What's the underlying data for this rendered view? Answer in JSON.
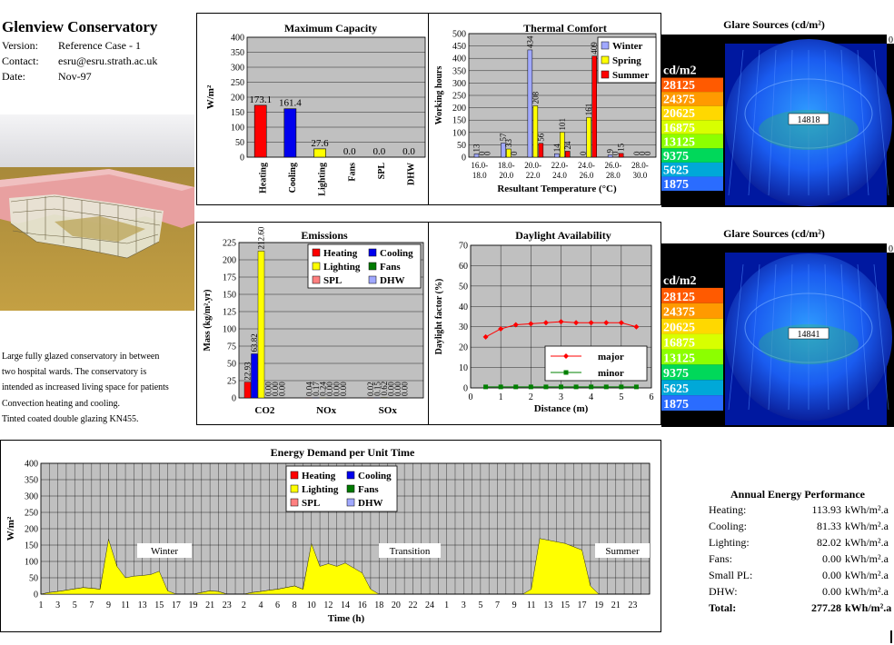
{
  "header": {
    "title": "Glenview Conservatory",
    "fields": [
      {
        "label": "Version:",
        "value": "Reference Case - 1"
      },
      {
        "label": "Contact:",
        "value": "esru@esru.strath.ac.uk"
      },
      {
        "label": "Date:",
        "value": "Nov-97"
      }
    ]
  },
  "description": [
    "Large fully glazed conservatory in between",
    "two hospital wards. The conservatory is",
    "intended as increased living space for patients",
    "Convection heating and cooling.",
    "Tinted coated double glazing KN455."
  ],
  "glare": [
    {
      "title": "Glare Sources (cd/m²)",
      "unit": "cd/m2",
      "zero": "0",
      "peak": "14818",
      "scale": [
        "28125",
        "24375",
        "20625",
        "16875",
        "13125",
        "9375",
        "5625",
        "1875"
      ]
    },
    {
      "title": "Glare Sources (cd/m²)",
      "unit": "cd/m2",
      "zero": "0",
      "peak": "14841",
      "scale": [
        "28125",
        "24375",
        "20625",
        "16875",
        "13125",
        "9375",
        "5625",
        "1875"
      ]
    }
  ],
  "colors": {
    "heating": "#ff0000",
    "cooling": "#0000ee",
    "lighting": "#ffff00",
    "fans": "#007a00",
    "spl": "#ff8080",
    "dhw": "#a0a8ff",
    "winter": "#a0a8ff",
    "spring": "#ffff00",
    "summer": "#ff0000",
    "plot_bg": "#c0c0c0"
  },
  "annual": {
    "title": "Annual Energy Performance",
    "rows": [
      {
        "label": "Heating:",
        "value": "113.93",
        "unit": "kWh/m².a"
      },
      {
        "label": "Cooling:",
        "value": "81.33",
        "unit": "kWh/m².a"
      },
      {
        "label": "Lighting:",
        "value": "82.02",
        "unit": "kWh/m².a"
      },
      {
        "label": "Fans:",
        "value": "0.00",
        "unit": "kWh/m².a"
      },
      {
        "label": "Small PL:",
        "value": "0.00",
        "unit": "kWh/m².a"
      },
      {
        "label": "DHW:",
        "value": "0.00",
        "unit": "kWh/m².a"
      }
    ],
    "total": {
      "label": "Total:",
      "value": "277.28",
      "unit": "kWh/m².a"
    }
  },
  "chart_data": [
    {
      "type": "bar",
      "title": "Maximum Capacity",
      "ylabel": "W/m²",
      "ylim": [
        0,
        400
      ],
      "yticks": [
        0,
        50,
        100,
        150,
        200,
        250,
        300,
        350,
        400
      ],
      "grid": true,
      "categories": [
        "Heating",
        "Cooling",
        "Lighting",
        "Fans",
        "SPL",
        "DHW"
      ],
      "values": [
        173.1,
        161.4,
        27.6,
        0.0,
        0.0,
        0.0
      ],
      "labels": [
        "173.1",
        "161.4",
        "27.6",
        "0.0",
        "0.0",
        "0.0"
      ]
    },
    {
      "type": "bar",
      "title": "Thermal Comfort",
      "xlabel": "Resultant Temperature (°C)",
      "ylabel": "Working hours",
      "ylim": [
        0,
        500
      ],
      "yticks": [
        0,
        50,
        100,
        150,
        200,
        250,
        300,
        350,
        400,
        450,
        500
      ],
      "grid": true,
      "legend": "top-right",
      "categories": [
        "16.0-18.0",
        "18.0-20.0",
        "20.0-22.0",
        "22.0-24.0",
        "24.0-26.0",
        "26.0-28.0",
        "28.0-30.0"
      ],
      "series": [
        {
          "name": "Winter",
          "values": [
            13,
            57,
            434,
            14,
            0,
            9,
            0
          ]
        },
        {
          "name": "Spring",
          "values": [
            0,
            33,
            208,
            101,
            161,
            0,
            0
          ]
        },
        {
          "name": "Summer",
          "values": [
            0,
            0,
            56,
            24,
            409,
            15,
            0
          ]
        }
      ]
    },
    {
      "type": "bar",
      "title": "Emissions",
      "ylabel": "Mass (kg/m².yr)",
      "ylim": [
        0,
        225
      ],
      "yticks": [
        0,
        25,
        50,
        75,
        100,
        125,
        150,
        175,
        200,
        225
      ],
      "grid": true,
      "legend": "top-right",
      "categories": [
        "CO2",
        "NOx",
        "SOx"
      ],
      "series": [
        {
          "name": "Heating",
          "values": [
            22.93,
            0.04,
            0.02
          ]
        },
        {
          "name": "Cooling",
          "values": [
            63.82,
            0.17,
            0.15
          ]
        },
        {
          "name": "Lighting",
          "values": [
            212.6,
            0.24,
            0.62
          ]
        },
        {
          "name": "Fans",
          "values": [
            0.0,
            0.0,
            0.0
          ]
        },
        {
          "name": "SPL",
          "values": [
            0.0,
            0.0,
            0.0
          ]
        },
        {
          "name": "DHW",
          "values": [
            0.0,
            0.0,
            0.0
          ]
        }
      ],
      "labels": [
        [
          "22.93",
          "0.04",
          "0.02"
        ],
        [
          "63.82",
          "0.17",
          "0.15"
        ],
        [
          "212.60",
          "0.24",
          "0.62"
        ],
        [
          "0.00",
          "0.00",
          "0.00"
        ],
        [
          "0.00",
          "0.00",
          "0.00"
        ],
        [
          "0.00",
          "0.00",
          "0.00"
        ]
      ]
    },
    {
      "type": "line",
      "title": "Daylight Availability",
      "xlabel": "Distance (m)",
      "ylabel": "Daylight factor (%)",
      "xlim": [
        0,
        6
      ],
      "ylim": [
        0,
        70
      ],
      "xticks": [
        0,
        1,
        2,
        3,
        4,
        5,
        6
      ],
      "yticks": [
        0,
        10,
        20,
        30,
        40,
        50,
        60,
        70
      ],
      "grid": true,
      "legend": "bottom-right",
      "x": [
        0.5,
        1.0,
        1.5,
        2.0,
        2.5,
        3.0,
        3.5,
        4.0,
        4.5,
        5.0,
        5.5
      ],
      "series": [
        {
          "name": "major",
          "values": [
            25,
            29,
            31,
            31.5,
            32,
            32.5,
            32,
            32,
            32,
            32,
            30
          ]
        },
        {
          "name": "minor",
          "values": [
            0.5,
            0.5,
            0.5,
            0.5,
            0.5,
            0.5,
            0.5,
            0.5,
            0.5,
            0.5,
            0.5
          ]
        }
      ]
    },
    {
      "type": "area",
      "title": "Energy Demand per Unit Time",
      "xlabel": "Time (h)",
      "ylabel": "W/m²",
      "ylim": [
        0,
        400
      ],
      "yticks": [
        0,
        50,
        100,
        150,
        200,
        250,
        300,
        350,
        400
      ],
      "grid": true,
      "legend": "top-center",
      "segments": [
        "Winter",
        "Transition",
        "Summer"
      ],
      "x_tick_labels": [
        "1",
        "3",
        "5",
        "7",
        "9",
        "11",
        "13",
        "15",
        "17",
        "19",
        "21",
        "23",
        "2",
        "4",
        "6",
        "8",
        "10",
        "12",
        "14",
        "16",
        "18",
        "20",
        "22",
        "24",
        "1",
        "3",
        "5",
        "7",
        "9",
        "11",
        "13",
        "15",
        "17",
        "19",
        "21",
        "23"
      ],
      "series": [
        {
          "name": "Heating",
          "values": [
            0,
            5,
            8,
            12,
            16,
            20,
            18,
            15,
            160,
            70,
            30,
            30,
            35,
            35,
            50,
            5,
            0,
            0,
            0,
            5,
            10,
            8,
            0,
            0,
            0,
            5,
            8,
            12,
            15,
            20,
            25,
            15,
            150,
            5,
            0,
            0,
            0,
            0,
            0,
            0,
            0,
            0,
            0,
            0,
            0,
            0,
            0,
            0,
            0,
            0,
            0,
            0,
            0,
            0,
            0,
            0,
            0,
            0,
            0,
            0,
            0,
            0,
            0,
            0,
            0,
            0,
            0,
            0,
            0,
            0,
            0,
            0
          ]
        },
        {
          "name": "Cooling",
          "values": [
            0,
            0,
            0,
            0,
            0,
            0,
            0,
            0,
            0,
            0,
            0,
            0,
            0,
            0,
            0,
            0,
            0,
            0,
            0,
            0,
            0,
            0,
            0,
            0,
            0,
            0,
            0,
            0,
            0,
            0,
            0,
            0,
            0,
            60,
            65,
            60,
            70,
            55,
            45,
            10,
            0,
            0,
            0,
            0,
            0,
            0,
            0,
            0,
            0,
            0,
            0,
            0,
            0,
            0,
            0,
            0,
            0,
            0,
            10,
            145,
            140,
            135,
            130,
            120,
            110,
            20,
            0,
            0,
            0,
            0,
            0,
            0,
            0
          ]
        },
        {
          "name": "Lighting",
          "values": [
            0,
            0,
            0,
            0,
            0,
            0,
            0,
            0,
            8,
            15,
            20,
            25,
            22,
            25,
            20,
            5,
            0,
            0,
            0,
            0,
            0,
            0,
            0,
            0,
            0,
            0,
            0,
            0,
            0,
            0,
            0,
            0,
            5,
            25,
            28,
            25,
            25,
            25,
            20,
            5,
            0,
            0,
            0,
            0,
            0,
            0,
            0,
            0,
            0,
            0,
            0,
            0,
            0,
            0,
            0,
            0,
            0,
            0,
            5,
            25,
            25,
            25,
            25,
            25,
            25,
            5,
            0,
            0,
            0,
            0,
            0,
            0,
            0
          ]
        },
        {
          "name": "Fans",
          "values": []
        },
        {
          "name": "SPL",
          "values": []
        },
        {
          "name": "DHW",
          "values": []
        }
      ]
    }
  ]
}
